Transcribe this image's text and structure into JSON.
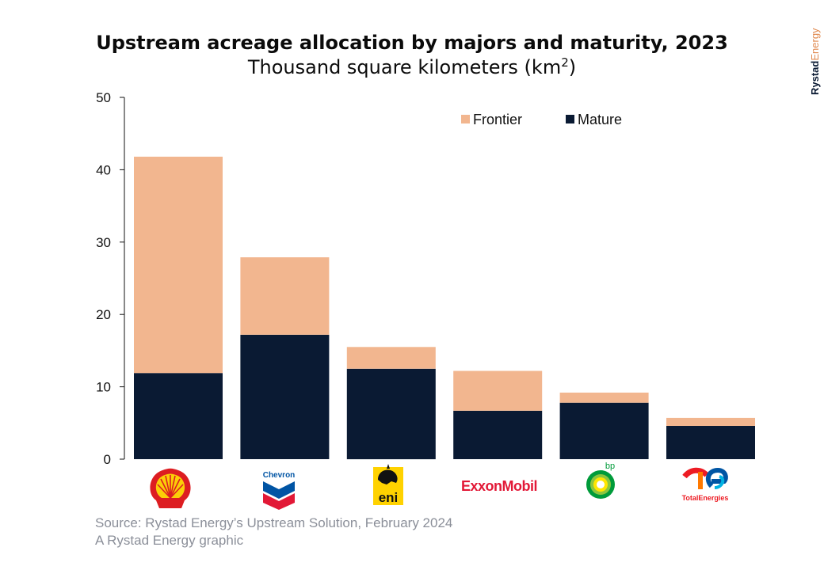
{
  "chart_data": {
    "type": "bar",
    "stacked": true,
    "title": "Upstream acreage allocation by majors and maturity, 2023",
    "subtitle": "Thousand square kilometers (km",
    "subtitle_sup": "2",
    "subtitle_end": ")",
    "categories": [
      "Shell",
      "Chevron",
      "eni",
      "ExxonMobil",
      "bp",
      "TotalEnergies"
    ],
    "series": [
      {
        "name": "Mature",
        "color": "#0a1a33",
        "values": [
          11.9,
          17.2,
          12.5,
          6.7,
          7.8,
          4.6
        ]
      },
      {
        "name": "Frontier",
        "color": "#f2b68f",
        "values": [
          29.9,
          10.7,
          3.0,
          5.5,
          1.4,
          1.1
        ]
      }
    ],
    "ylim": [
      0,
      50
    ],
    "yticks": [
      0,
      10,
      20,
      30,
      40,
      50
    ],
    "legend": {
      "position": "top-right",
      "order": [
        "Frontier",
        "Mature"
      ]
    },
    "grid": false
  },
  "logos": {
    "chevron": "Chevron",
    "eni": "eni",
    "exxon": "ExxonMobil",
    "bp": "bp",
    "total": "TotalEnergies"
  },
  "footer": {
    "source": "Source: Rystad Energy’s Upstream Solution, February 2024",
    "credit": "A Rystad Energy graphic"
  },
  "brand": {
    "part1": "Rystad",
    "part2": "Energy"
  }
}
